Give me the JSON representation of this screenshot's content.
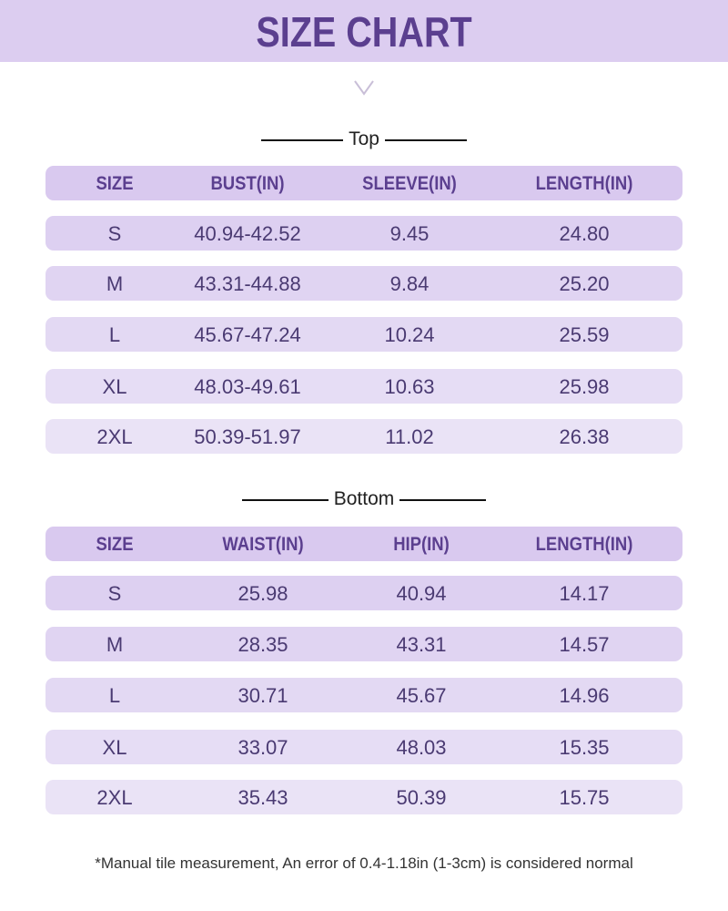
{
  "header": {
    "title": "SIZE CHART"
  },
  "sections": [
    {
      "label": "Top",
      "columns": [
        "SIZE",
        "BUST(IN)",
        "SLEEVE(IN)",
        "LENGTH(IN)"
      ],
      "rows": [
        [
          "S",
          "40.94-42.52",
          "9.45",
          "24.80"
        ],
        [
          "M",
          "43.31-44.88",
          "9.84",
          "25.20"
        ],
        [
          "L",
          "45.67-47.24",
          "10.24",
          "25.59"
        ],
        [
          "XL",
          "48.03-49.61",
          "10.63",
          "25.98"
        ],
        [
          "2XL",
          "50.39-51.97",
          "11.02",
          "26.38"
        ]
      ]
    },
    {
      "label": "Bottom",
      "columns": [
        "SIZE",
        "WAIST(IN)",
        "HIP(IN)",
        "LENGTH(IN)"
      ],
      "rows": [
        [
          "S",
          "25.98",
          "40.94",
          "14.17"
        ],
        [
          "M",
          "28.35",
          "43.31",
          "14.57"
        ],
        [
          "L",
          "30.71",
          "45.67",
          "14.96"
        ],
        [
          "XL",
          "33.07",
          "48.03",
          "15.35"
        ],
        [
          "2XL",
          "35.43",
          "50.39",
          "15.75"
        ]
      ]
    }
  ],
  "footnote": "*Manual tile measurement, An error of 0.4-1.18in (1-3cm) is considered normal"
}
